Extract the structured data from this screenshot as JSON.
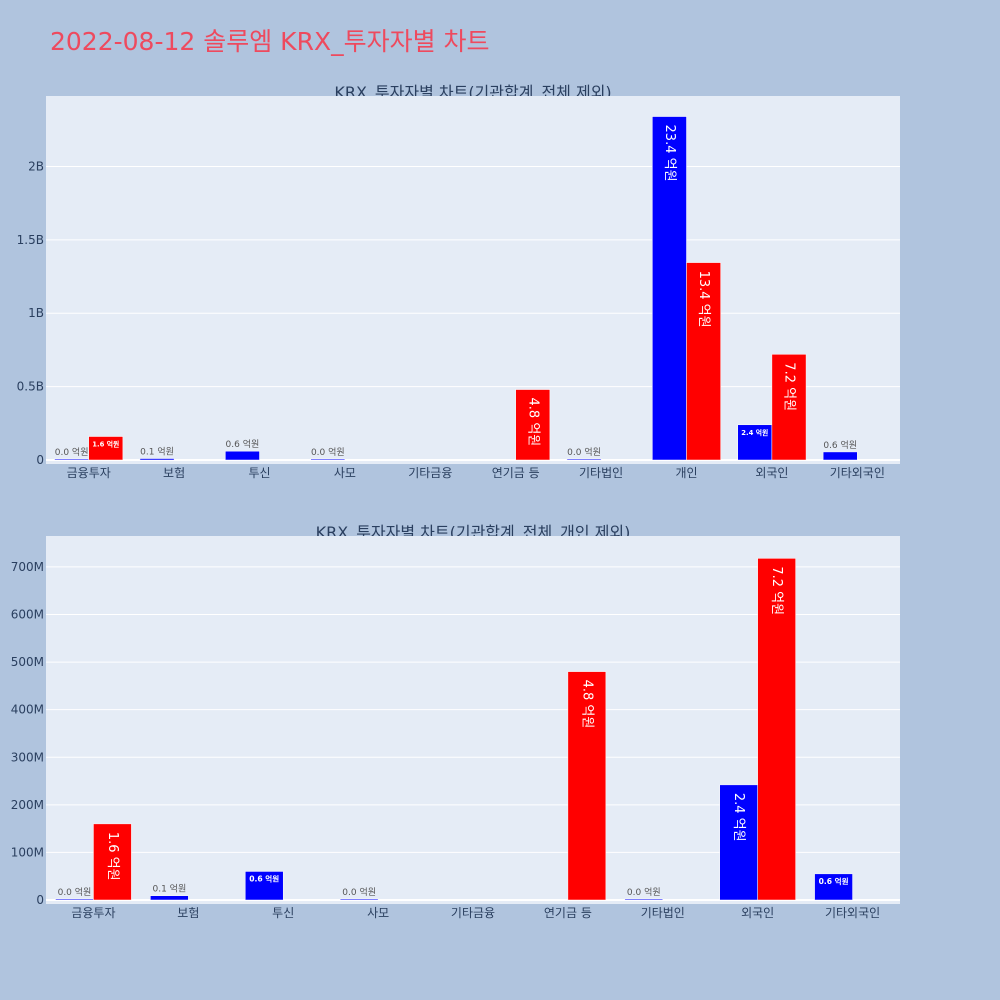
{
  "page": {
    "title": "2022-08-12 솔루엠 KRX_투자자별 차트"
  },
  "colors": {
    "background": "#b0c4de",
    "plot_bg": "#e5ecf6",
    "grid": "#ffffff",
    "title": "#ee4a5e",
    "axis_text": "#2a3f5f",
    "sell": "#0000ff",
    "buy": "#ff0000"
  },
  "chart_data": [
    {
      "type": "bar",
      "title": "KRX_투자자별 차트(기관합계_전체 제외)",
      "xlabel": "",
      "ylabel": "",
      "categories": [
        "금융투자",
        "보험",
        "투신",
        "사모",
        "기타금융",
        "연기금 등",
        "기타법인",
        "개인",
        "외국인",
        "기타외국인"
      ],
      "ylim": [
        0,
        2480000000
      ],
      "yticks": [
        0,
        500000000,
        1000000000,
        1500000000,
        2000000000
      ],
      "yticklabels": [
        "0",
        "0.5B",
        "1B",
        "1.5B",
        "2B"
      ],
      "grid": true,
      "series": [
        {
          "color": "#0000ff",
          "values": [
            1000000,
            10000000,
            60000000,
            1000000,
            null,
            null,
            1000000,
            2340000000,
            240000000,
            55000000
          ],
          "labels": [
            "0.0 억원",
            "0.1 억원",
            "0.6 억원",
            "0.0 억원",
            "",
            "",
            "0.0 억원",
            "23.4 억원",
            "2.4 억원",
            "0.6 억원"
          ]
        },
        {
          "color": "#ff0000",
          "values": [
            160000000,
            null,
            null,
            null,
            null,
            480000000,
            null,
            1345000000,
            720000000,
            null
          ],
          "labels": [
            "1.6 억원",
            "",
            "",
            "",
            "",
            "4.8 억원",
            "",
            "13.4 억원",
            "7.2 억원",
            ""
          ]
        }
      ]
    },
    {
      "type": "bar",
      "title": "KRX_투자자별 차트(기관합계_전체_개인 제외)",
      "xlabel": "",
      "ylabel": "",
      "categories": [
        "금융투자",
        "보험",
        "투신",
        "사모",
        "기타금융",
        "연기금 등",
        "기타법인",
        "외국인",
        "기타외국인"
      ],
      "ylim": [
        0,
        765000000
      ],
      "yticks": [
        0,
        100000000,
        200000000,
        300000000,
        400000000,
        500000000,
        600000000,
        700000000
      ],
      "yticklabels": [
        "0",
        "100M",
        "200M",
        "300M",
        "400M",
        "500M",
        "600M",
        "700M"
      ],
      "grid": true,
      "series": [
        {
          "color": "#0000ff",
          "values": [
            1000000,
            9000000,
            60000000,
            1000000,
            null,
            null,
            1000000,
            242000000,
            55000000
          ],
          "labels": [
            "0.0 억원",
            "0.1 억원",
            "0.6 억원",
            "0.0 억원",
            "",
            "",
            "0.0 억원",
            "2.4 억원",
            "0.6 억원"
          ]
        },
        {
          "color": "#ff0000",
          "values": [
            160000000,
            null,
            null,
            null,
            null,
            480000000,
            null,
            718000000,
            null
          ],
          "labels": [
            "1.6 억원",
            "",
            "",
            "",
            "",
            "4.8 억원",
            "",
            "7.2 억원",
            ""
          ]
        }
      ]
    }
  ]
}
